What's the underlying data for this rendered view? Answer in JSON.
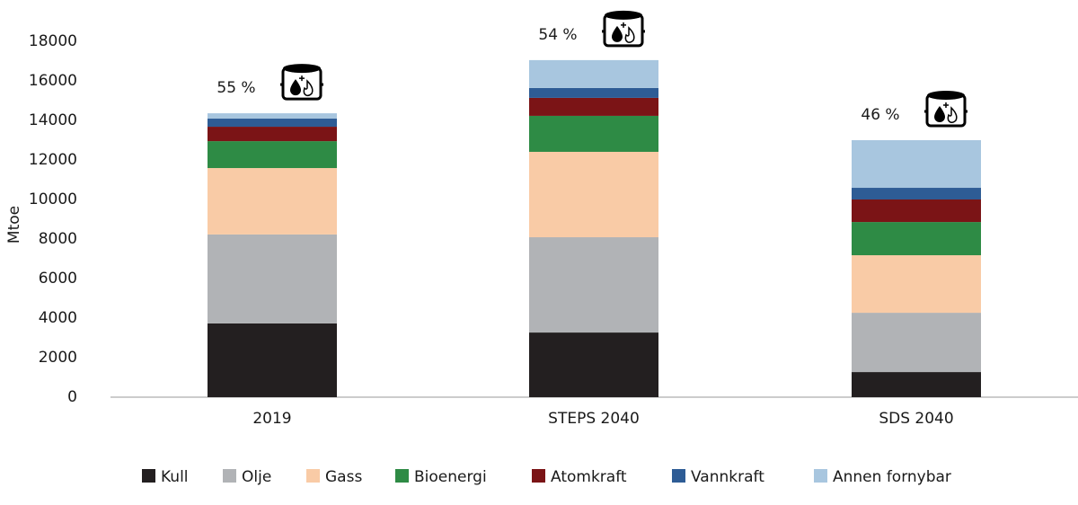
{
  "chart_data": {
    "type": "stacked_bar",
    "y_label": "Mtoe",
    "categories": [
      "2019",
      "STEPS 2040",
      "SDS 2040"
    ],
    "annotations": [
      "55 %",
      "54 %",
      "46 %"
    ],
    "series": [
      {
        "name": "Kull",
        "color": "#231f20",
        "values": [
          3730,
          3270,
          1270
        ]
      },
      {
        "name": "Olje",
        "color": "#b1b3b6",
        "values": [
          4500,
          4820,
          3000
        ]
      },
      {
        "name": "Gass",
        "color": "#f9cba6",
        "values": [
          3360,
          4320,
          2910
        ]
      },
      {
        "name": "Bioenergi",
        "color": "#2e8b45",
        "values": [
          1360,
          1820,
          1680
        ]
      },
      {
        "name": "Atomkraft",
        "color": "#7b1416",
        "values": [
          730,
          910,
          1140
        ]
      },
      {
        "name": "Vannkraft",
        "color": "#2e5c95",
        "values": [
          410,
          500,
          590
        ]
      },
      {
        "name": "Annen fornybar",
        "color": "#a8c6df",
        "values": [
          270,
          1410,
          2410
        ]
      }
    ],
    "ylim": [
      0,
      18000
    ],
    "yticks": [
      0,
      2000,
      4000,
      6000,
      8000,
      10000,
      12000,
      14000,
      16000,
      18000
    ],
    "legend": "bottom"
  }
}
